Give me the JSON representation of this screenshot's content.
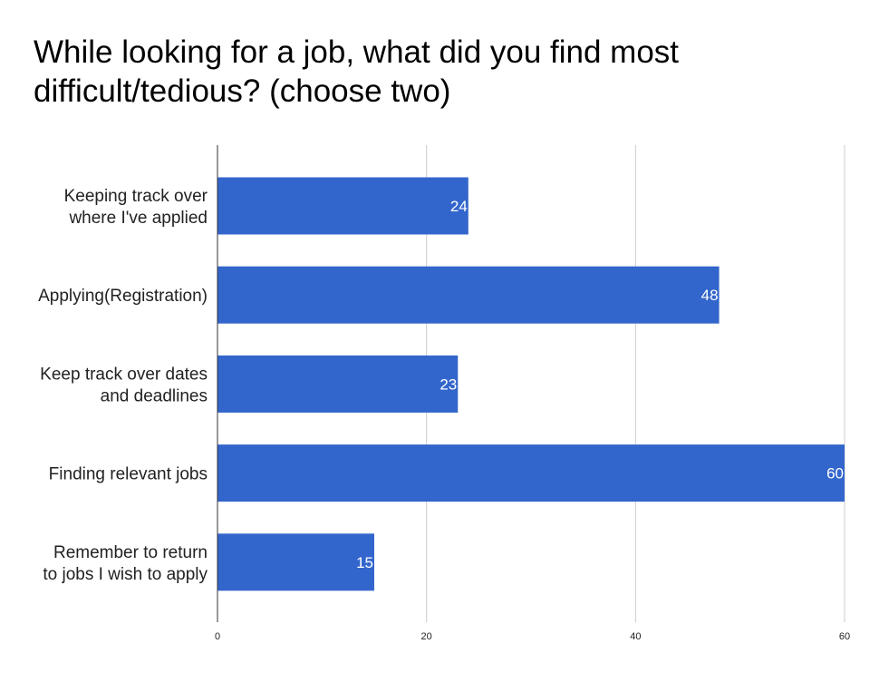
{
  "chart_data": {
    "type": "bar",
    "orientation": "horizontal",
    "title_lines": [
      "While looking for a job, what did you find most",
      "difficult/tedious? (choose two)"
    ],
    "categories": [
      [
        "Keeping track over",
        "where I've applied"
      ],
      [
        "Applying(Registration)"
      ],
      [
        "Keep track over dates",
        "and deadlines"
      ],
      [
        "Finding relevant jobs"
      ],
      [
        "Remember to return",
        "to jobs I wish to apply"
      ]
    ],
    "values": [
      24,
      48,
      23,
      60,
      15
    ],
    "xlim": [
      0,
      60
    ],
    "ticks": [
      0,
      20,
      40,
      60
    ],
    "grid": true,
    "bar_color": "#3366cc",
    "grid_color": "#cccccc",
    "axis_color": "#333333"
  }
}
